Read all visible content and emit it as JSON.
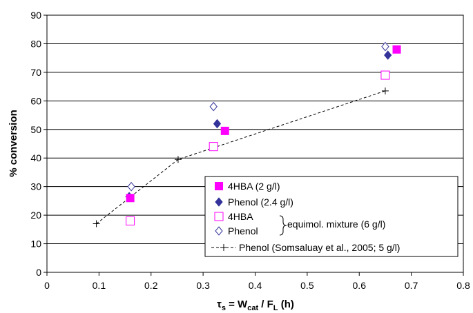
{
  "chart_data": {
    "type": "scatter",
    "title": "",
    "xlabel": {
      "tau": "τ",
      "tau_sub": "s",
      "eq": " = W",
      "w_sub": "cat",
      "div": " / F",
      "f_sub": "L",
      "unit": " (h)"
    },
    "ylabel": "% conversion",
    "xlim": [
      0,
      0.8
    ],
    "ylim": [
      0,
      90
    ],
    "xticks": [
      "0",
      "0.1",
      "0.2",
      "0.3",
      "0.4",
      "0.5",
      "0.6",
      "0.7",
      "0.8"
    ],
    "yticks": [
      "0",
      "10",
      "20",
      "30",
      "40",
      "50",
      "60",
      "70",
      "80",
      "90"
    ],
    "grid": "horizontal",
    "legend_position": "bottom-right",
    "legend_group_label": "equimol. mixture (6 g/l)",
    "series": [
      {
        "name": "4HBA (2 g/l)",
        "marker": "square-filled",
        "color": "#ff00ff",
        "x": [
          0.16,
          0.342,
          0.672
        ],
        "y": [
          26,
          49.5,
          78
        ]
      },
      {
        "name": "Phenol (2.4 g/l)",
        "marker": "diamond-filled",
        "color": "#33339a",
        "x": [
          0.158,
          0.327,
          0.655
        ],
        "y": [
          26.5,
          52,
          76
        ]
      },
      {
        "name": "4HBA",
        "marker": "square-open",
        "color": "#ff00ff",
        "x": [
          0.16,
          0.32,
          0.65
        ],
        "y": [
          18,
          44,
          69
        ]
      },
      {
        "name": "Phenol",
        "marker": "diamond-open",
        "color": "#33339a",
        "x": [
          0.162,
          0.32,
          0.65
        ],
        "y": [
          30,
          58,
          79
        ]
      },
      {
        "name": "Phenol (Somsaluay et al., 2005; 5 g/l)",
        "marker": "plus-dashed-line",
        "color": "#000000",
        "x": [
          0.095,
          0.252,
          0.65
        ],
        "y": [
          17,
          39.5,
          63.5
        ]
      }
    ]
  }
}
